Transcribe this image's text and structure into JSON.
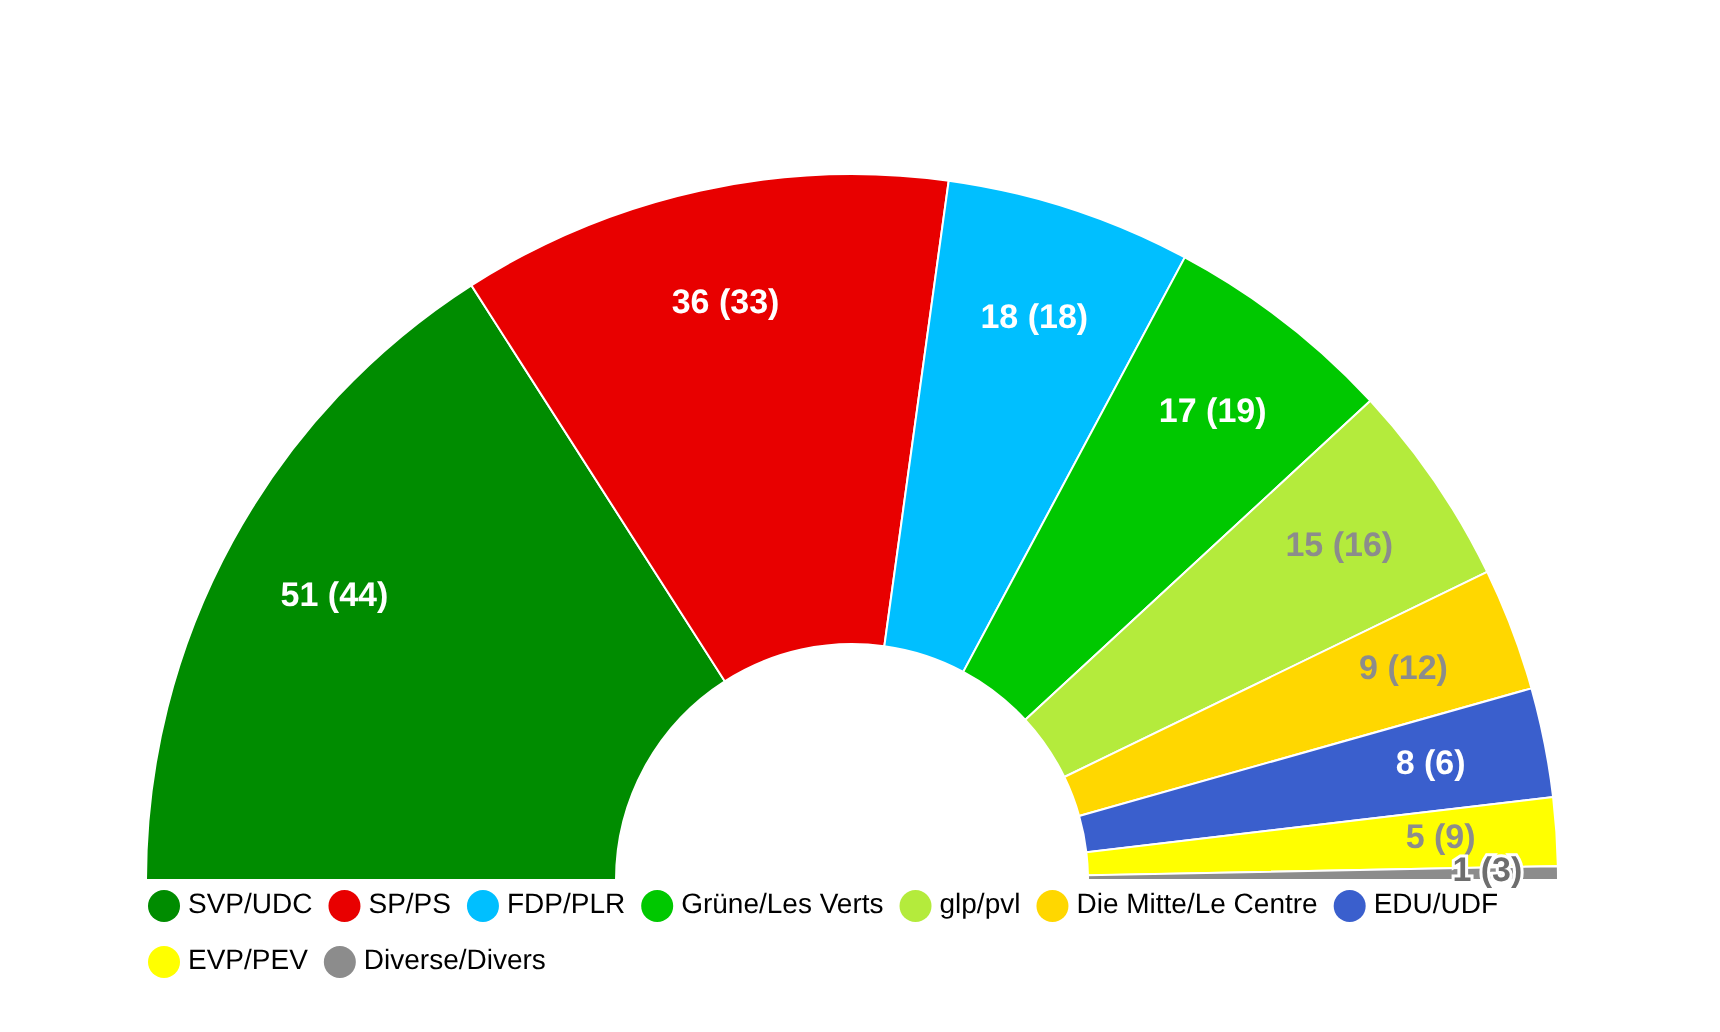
{
  "chart_data": {
    "type": "donut",
    "categories": [
      "SVP/UDC",
      "SP/PS",
      "FDP/PLR",
      "Grüne/Les Verts",
      "glp/pvl",
      "Die Mitte/Le Centre",
      "EDU/UDF",
      "EVP/PEV",
      "Diverse/Divers"
    ],
    "values": [
      51,
      36,
      18,
      17,
      15,
      9,
      8,
      5,
      1
    ],
    "value_labels": [
      "51 (44)",
      "36 (33)",
      "18 (18)",
      "17 (19)",
      "15 (16)",
      "9 (12)",
      "8 (6)",
      "5 (9)",
      "1 (3)"
    ],
    "colors": [
      "#008c00",
      "#e80000",
      "#00bfff",
      "#00c800",
      "#b4eb3c",
      "#ffd700",
      "#3a5fcd",
      "#ffff00",
      "#8c8c8c"
    ],
    "legend": "bottom"
  }
}
